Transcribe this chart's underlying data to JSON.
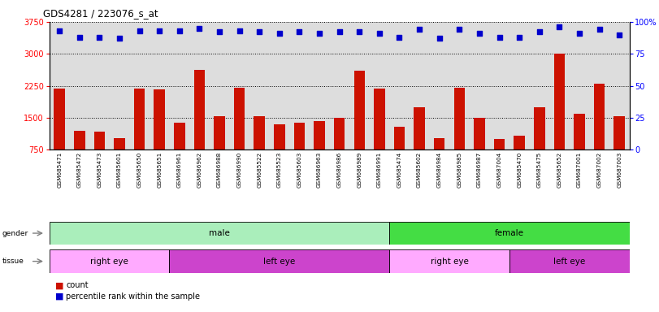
{
  "title": "GDS4281 / 223076_s_at",
  "samples": [
    "GSM685471",
    "GSM685472",
    "GSM685473",
    "GSM685601",
    "GSM685650",
    "GSM685651",
    "GSM686961",
    "GSM686962",
    "GSM686988",
    "GSM686990",
    "GSM685522",
    "GSM685523",
    "GSM685603",
    "GSM686963",
    "GSM686986",
    "GSM686989",
    "GSM686991",
    "GSM685474",
    "GSM685602",
    "GSM686984",
    "GSM686985",
    "GSM686987",
    "GSM687004",
    "GSM685470",
    "GSM685475",
    "GSM685652",
    "GSM687001",
    "GSM687002",
    "GSM687003"
  ],
  "counts": [
    2180,
    1200,
    1180,
    1030,
    2180,
    2170,
    1380,
    2620,
    1530,
    2200,
    1530,
    1350,
    1390,
    1430,
    1490,
    2610,
    2180,
    1290,
    1750,
    1030,
    2200,
    1490,
    1000,
    1080,
    1750,
    3000,
    1600,
    2300,
    1530
  ],
  "percentiles": [
    93,
    88,
    88,
    87,
    93,
    93,
    93,
    95,
    92,
    93,
    92,
    91,
    92,
    91,
    92,
    92,
    91,
    88,
    94,
    87,
    94,
    91,
    88,
    88,
    92,
    96,
    91,
    94,
    90
  ],
  "gender_groups": [
    {
      "label": "male",
      "start": 0,
      "end": 17,
      "color": "#AAEEBB"
    },
    {
      "label": "female",
      "start": 17,
      "end": 29,
      "color": "#44DD44"
    }
  ],
  "tissue_groups": [
    {
      "label": "right eye",
      "start": 0,
      "end": 6,
      "color": "#FFAAFF"
    },
    {
      "label": "left eye",
      "start": 6,
      "end": 17,
      "color": "#CC44CC"
    },
    {
      "label": "right eye",
      "start": 17,
      "end": 23,
      "color": "#FFAAFF"
    },
    {
      "label": "left eye",
      "start": 23,
      "end": 29,
      "color": "#CC44CC"
    }
  ],
  "ylim_left": [
    750,
    3750
  ],
  "ylim_right": [
    0,
    100
  ],
  "yticks_left": [
    750,
    1500,
    2250,
    3000,
    3750
  ],
  "yticks_right": [
    0,
    25,
    50,
    75,
    100
  ],
  "bar_color": "#CC1100",
  "dot_color": "#0000CC",
  "grid_values": [
    1500,
    2250,
    3000
  ],
  "plot_bg": "#DDDDDD",
  "tick_area_bg": "#CCCCCC"
}
